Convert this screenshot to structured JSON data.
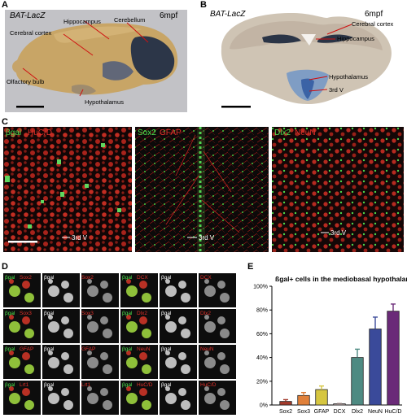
{
  "panels": {
    "A": {
      "label": "A",
      "title": "BAT-LacZ",
      "age": "6mpf",
      "annotations": [
        "Cerebral cortex",
        "Hippocampus",
        "Cerebellum",
        "Olfactory bulb",
        "Hypothalamus"
      ]
    },
    "B": {
      "label": "B",
      "title": "BAT-LacZ",
      "age": "6mpf",
      "annotations": [
        "Cerebral cortex",
        "Hippocampus",
        "Hypothalamus",
        "3rd V"
      ]
    },
    "C": {
      "label": "C",
      "sub1": {
        "m1": "βgal",
        "m2": "HuC/D",
        "vlabel": "3rd V"
      },
      "sub2": {
        "m1": "Sox2",
        "m2": "GFAP",
        "vlabel": "3rd V"
      },
      "sub3": {
        "m1": "Dlx2",
        "m2": "NeuN",
        "vlabel": "3rd V"
      }
    },
    "D": {
      "label": "D",
      "left_rows": [
        {
          "merge": "βgal",
          "marker": "Sox2"
        },
        {
          "merge": "βgal",
          "marker": "Sox3"
        },
        {
          "merge": "βgal",
          "marker": "GFAP"
        },
        {
          "merge": "βgal",
          "marker": "Lrt1"
        }
      ],
      "right_rows": [
        {
          "merge": "βgal",
          "marker": "DCX"
        },
        {
          "merge": "βgal",
          "marker": "Dlx2"
        },
        {
          "merge": "βgal",
          "marker": "NeuN"
        },
        {
          "merge": "βgal",
          "marker": "HuC/D"
        }
      ]
    },
    "E": {
      "label": "E"
    }
  },
  "colors": {
    "green": "#4fe24f",
    "red": "#e0302a",
    "bar_edge": "#222222"
  },
  "chart_data": {
    "type": "bar",
    "title": "ßgal+ cells in the mediobasal hypothalamus",
    "categories": [
      "Sox2",
      "Sox3",
      "GFAP",
      "DCX",
      "Dlx2",
      "NeuN",
      "HuC/D"
    ],
    "values": [
      3,
      8,
      13,
      1,
      40,
      64,
      79
    ],
    "errors": [
      1.5,
      2.5,
      3,
      0.5,
      7,
      10,
      6
    ],
    "bar_colors": [
      "#a33a2b",
      "#e0803a",
      "#d6c640",
      "#c8b4b4",
      "#4e8a82",
      "#3a4a9a",
      "#6a2a78"
    ],
    "ylim": [
      0,
      100
    ],
    "yticks": [
      "0%",
      "20%",
      "40%",
      "60%",
      "80%",
      "100%"
    ],
    "xlabel": "",
    "ylabel": ""
  }
}
